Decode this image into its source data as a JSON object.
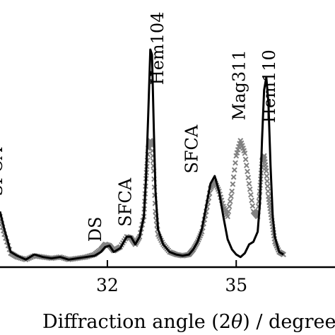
{
  "chart_data": {
    "type": "line",
    "xlabel_prefix": "Diffraction angle (2",
    "xlabel_theta": "θ",
    "xlabel_suffix": ") / degree",
    "xlim": [
      29.5,
      37.3
    ],
    "ylim": [
      0,
      1
    ],
    "xticks": [
      {
        "value": 32,
        "label": "32"
      },
      {
        "value": 35,
        "label": "35"
      }
    ],
    "series": [
      {
        "style": "line",
        "color": "#000000",
        "x": [
          29.5,
          29.6,
          29.75,
          29.9,
          30.1,
          30.3,
          30.5,
          30.7,
          30.9,
          31.1,
          31.3,
          31.5,
          31.7,
          31.85,
          31.95,
          32.05,
          32.15,
          32.3,
          32.45,
          32.55,
          32.65,
          32.75,
          32.85,
          32.9,
          32.95,
          33.0,
          33.04,
          33.08,
          33.12,
          33.18,
          33.3,
          33.45,
          33.6,
          33.75,
          33.9,
          34.0,
          34.1,
          34.2,
          34.3,
          34.4,
          34.5,
          34.6,
          34.7,
          34.8,
          34.9,
          35.0,
          35.1,
          35.2,
          35.3,
          35.4,
          35.5,
          35.55,
          35.6,
          35.65,
          35.7,
          35.75,
          35.8,
          35.85,
          35.9,
          36.0,
          36.1
        ],
        "y": [
          0.22,
          0.15,
          0.06,
          0.045,
          0.03,
          0.05,
          0.04,
          0.035,
          0.04,
          0.03,
          0.035,
          0.04,
          0.045,
          0.06,
          0.08,
          0.085,
          0.06,
          0.075,
          0.12,
          0.12,
          0.09,
          0.12,
          0.2,
          0.35,
          0.6,
          0.86,
          0.84,
          0.55,
          0.3,
          0.15,
          0.09,
          0.06,
          0.05,
          0.045,
          0.05,
          0.07,
          0.1,
          0.15,
          0.24,
          0.33,
          0.36,
          0.3,
          0.2,
          0.11,
          0.07,
          0.05,
          0.04,
          0.055,
          0.09,
          0.1,
          0.14,
          0.25,
          0.5,
          0.7,
          0.75,
          0.65,
          0.4,
          0.2,
          0.12,
          0.06,
          0.05
        ]
      },
      {
        "style": "x-markers",
        "color": "#808080",
        "x": [
          29.5,
          29.6,
          29.75,
          29.9,
          30.1,
          30.3,
          30.5,
          30.7,
          30.9,
          31.1,
          31.3,
          31.5,
          31.7,
          31.85,
          31.95,
          32.05,
          32.15,
          32.3,
          32.45,
          32.55,
          32.65,
          32.75,
          32.85,
          32.9,
          32.95,
          33.0,
          33.04,
          33.08,
          33.12,
          33.18,
          33.3,
          33.45,
          33.6,
          33.75,
          33.9,
          34.0,
          34.1,
          34.2,
          34.3,
          34.4,
          34.5,
          34.6,
          34.7,
          34.8,
          34.9,
          35.0,
          35.1,
          35.2,
          35.3,
          35.4,
          35.5,
          35.55,
          35.6,
          35.65,
          35.7,
          35.75,
          35.8,
          35.85,
          35.9,
          36.0,
          36.1
        ],
        "y": [
          0.2,
          0.13,
          0.055,
          0.04,
          0.03,
          0.045,
          0.04,
          0.035,
          0.04,
          0.03,
          0.035,
          0.04,
          0.05,
          0.07,
          0.09,
          0.085,
          0.065,
          0.08,
          0.12,
          0.115,
          0.09,
          0.12,
          0.2,
          0.35,
          0.47,
          0.5,
          0.48,
          0.38,
          0.22,
          0.13,
          0.09,
          0.06,
          0.05,
          0.045,
          0.05,
          0.07,
          0.1,
          0.14,
          0.22,
          0.31,
          0.34,
          0.3,
          0.24,
          0.2,
          0.3,
          0.44,
          0.5,
          0.45,
          0.33,
          0.22,
          0.2,
          0.3,
          0.42,
          0.44,
          0.38,
          0.28,
          0.22,
          0.16,
          0.1,
          0.06,
          0.05
        ]
      }
    ],
    "annotations": [
      {
        "text": "SFCA",
        "x": 29.55,
        "y": 0.28,
        "rotate": true
      },
      {
        "text": "DS",
        "x": 31.85,
        "y": 0.1,
        "rotate": true
      },
      {
        "text": "SFCA",
        "x": 32.55,
        "y": 0.16,
        "rotate": true
      },
      {
        "text": "Hem104",
        "x": 33.3,
        "y": 0.72,
        "rotate": true
      },
      {
        "text": "SFCA",
        "x": 34.1,
        "y": 0.37,
        "rotate": true
      },
      {
        "text": "Mag311",
        "x": 35.2,
        "y": 0.58,
        "rotate": true
      },
      {
        "text": "Hem110",
        "x": 35.9,
        "y": 0.57,
        "rotate": true
      }
    ]
  }
}
